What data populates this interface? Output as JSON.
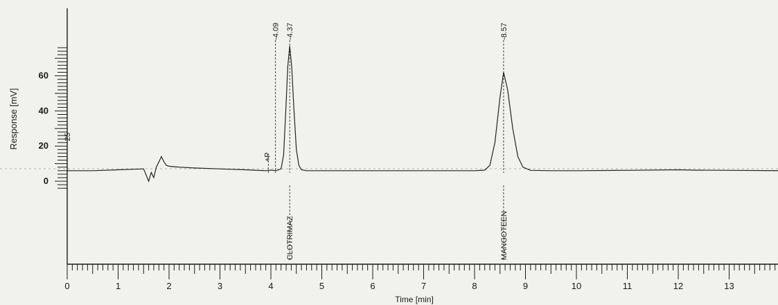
{
  "chart_data": {
    "type": "line",
    "title": "",
    "xlabel": "Time [min]",
    "ylabel": "Response [mV]",
    "xlim": [
      0,
      14
    ],
    "ylim": [
      -5,
      90
    ],
    "x_ticks": [
      "0",
      "1",
      "2",
      "3",
      "4",
      "5",
      "6",
      "7",
      "8",
      "9",
      "10",
      "11",
      "12",
      "13"
    ],
    "y_ticks": [
      "0",
      "20",
      "40",
      "60"
    ],
    "grid": false,
    "baseline_mv": 6,
    "series": [
      {
        "x": [
          0,
          0.5,
          1.0,
          1.5,
          1.6,
          1.65,
          1.7,
          1.75,
          1.8,
          1.85,
          1.9,
          1.95,
          2.0,
          2.2,
          2.5,
          3.0,
          3.5,
          3.9,
          4.0,
          4.1,
          4.2,
          4.25,
          4.3,
          4.33,
          4.37,
          4.41,
          4.45,
          4.5,
          4.55,
          4.6,
          4.7,
          5.0,
          6.0,
          7.0,
          8.0,
          8.2,
          8.3,
          8.4,
          8.5,
          8.57,
          8.65,
          8.75,
          8.85,
          8.95,
          9.1,
          9.5,
          10.0,
          11.0,
          12.0,
          12.3,
          13.0,
          14.0
        ],
        "y": [
          6,
          6,
          6.5,
          7,
          0,
          5,
          2,
          8,
          11,
          14,
          11,
          9,
          8.5,
          8,
          7.5,
          7,
          6.5,
          6,
          6.3,
          6,
          7,
          15,
          45,
          65,
          77,
          65,
          42,
          18,
          9,
          6.5,
          6,
          6,
          6,
          6,
          6,
          6.3,
          9,
          22,
          48,
          62,
          52,
          30,
          14,
          8,
          6.2,
          6,
          6,
          6.2,
          6.5,
          6.3,
          6.2,
          6
        ]
      }
    ],
    "peak_labels": [
      {
        "rt": 4.09,
        "text": "-4.09"
      },
      {
        "rt": 4.37,
        "text": "-4.37"
      },
      {
        "rt": 8.57,
        "text": "-8.57"
      }
    ],
    "compound_labels": [
      {
        "rt": 4.37,
        "text": "CLOTRIMAZ"
      },
      {
        "rt": 8.57,
        "text": "MANGOTEEN"
      }
    ],
    "annotations": [
      {
        "x": 3.95,
        "text": "+P"
      },
      {
        "x": 0.05,
        "text": "25"
      }
    ]
  }
}
